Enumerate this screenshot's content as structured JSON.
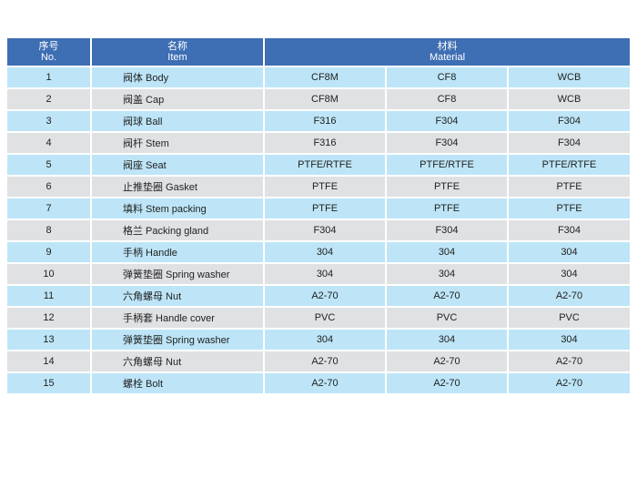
{
  "header": {
    "no_cn": "序号",
    "no_en": "No.",
    "item_cn": "名称",
    "item_en": "Item",
    "material_cn": "材料",
    "material_en": "Material"
  },
  "rows": [
    {
      "no": "1",
      "item": "阀体 Body",
      "m1": "CF8M",
      "m2": "CF8",
      "m3": "WCB"
    },
    {
      "no": "2",
      "item": "阀盖 Cap",
      "m1": "CF8M",
      "m2": "CF8",
      "m3": "WCB"
    },
    {
      "no": "3",
      "item": "阀球 Ball",
      "m1": "F316",
      "m2": "F304",
      "m3": "F304"
    },
    {
      "no": "4",
      "item": "阀杆 Stem",
      "m1": "F316",
      "m2": "F304",
      "m3": "F304"
    },
    {
      "no": "5",
      "item": "阀座 Seat",
      "m1": "PTFE/RTFE",
      "m2": "PTFE/RTFE",
      "m3": "PTFE/RTFE"
    },
    {
      "no": "6",
      "item": "止推垫圈 Gasket",
      "m1": "PTFE",
      "m2": "PTFE",
      "m3": "PTFE"
    },
    {
      "no": "7",
      "item": "填料 Stem packing",
      "m1": "PTFE",
      "m2": "PTFE",
      "m3": "PTFE"
    },
    {
      "no": "8",
      "item": "格兰 Packing gland",
      "m1": "F304",
      "m2": "F304",
      "m3": "F304"
    },
    {
      "no": "9",
      "item": "手柄 Handle",
      "m1": "304",
      "m2": "304",
      "m3": "304"
    },
    {
      "no": "10",
      "item": "弹簧垫圈 Spring washer",
      "m1": "304",
      "m2": "304",
      "m3": "304"
    },
    {
      "no": "11",
      "item": "六角螺母 Nut",
      "m1": "A2-70",
      "m2": "A2-70",
      "m3": "A2-70"
    },
    {
      "no": "12",
      "item": "手柄套 Handle cover",
      "m1": "PVC",
      "m2": "PVC",
      "m3": "PVC"
    },
    {
      "no": "13",
      "item": "弹簧垫圈 Spring washer",
      "m1": "304",
      "m2": "304",
      "m3": "304"
    },
    {
      "no": "14",
      "item": "六角螺母 Nut",
      "m1": "A2-70",
      "m2": "A2-70",
      "m3": "A2-70"
    },
    {
      "no": "15",
      "item": "螺栓 Bolt",
      "m1": "A2-70",
      "m2": "A2-70",
      "m3": "A2-70"
    }
  ],
  "colors": {
    "header_bg": "#3e6eb3",
    "row_odd_bg": "#bde5f7",
    "row_even_bg": "#e0e1e3"
  }
}
